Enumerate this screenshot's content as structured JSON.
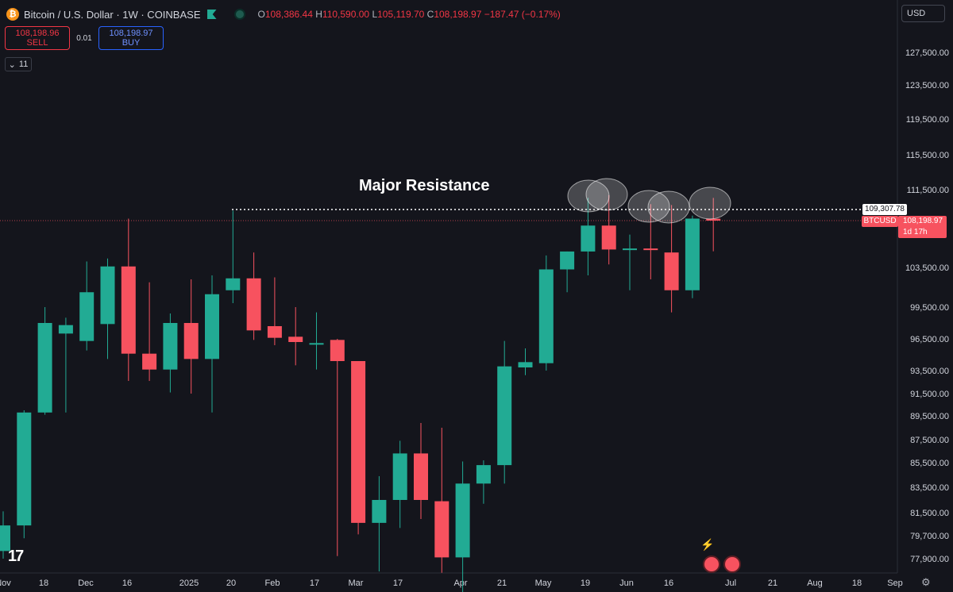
{
  "header": {
    "title": "Bitcoin / U.S. Dollar · 1W · COINBASE",
    "ohlc": {
      "o_label": "O",
      "o": "108,386.44",
      "h_label": "H",
      "h": "110,590.00",
      "l_label": "L",
      "l": "105,119.70",
      "c_label": "C",
      "c": "108,198.97",
      "change": "−187.47 (−0.17%)"
    },
    "btc_symbol": "₿"
  },
  "trade": {
    "sell_price": "108,198.96",
    "sell_label": "SELL",
    "spread": "0.01",
    "buy_price": "108,198.97",
    "buy_label": "BUY"
  },
  "indicators_toggle": {
    "icon": "chevron-down-icon",
    "count": "11"
  },
  "currency": "USD",
  "annotation": "Major Resistance",
  "resistance_label": "109,307.78",
  "current_price": {
    "symbol": "BTCUSD",
    "price": "108,198.97",
    "countdown": "1d 17h"
  },
  "colors": {
    "up": "#22ab94",
    "down": "#f7525f",
    "bg": "#14151c",
    "text": "#d1d4dc"
  },
  "logo": "17",
  "chart_data": {
    "type": "candlestick",
    "resistance": 109307.78,
    "y_ticks": [
      "127,500.00",
      "123,500.00",
      "119,500.00",
      "115,500.00",
      "111,500.00",
      "103,500.00",
      "99,500.00",
      "96,500.00",
      "93,500.00",
      "91,500.00",
      "89,500.00",
      "87,500.00",
      "85,500.00",
      "83,500.00",
      "81,500.00",
      "79,700.00",
      "77,900.00"
    ],
    "x_ticks": [
      "Nov",
      "18",
      "Dec",
      "16",
      "2025",
      "20",
      "Feb",
      "17",
      "Mar",
      "17",
      "Apr",
      "21",
      "May",
      "19",
      "Jun",
      "16",
      "Jul",
      "21",
      "Aug",
      "18",
      "Sep"
    ],
    "candles": [
      {
        "o": 78500,
        "h": 81600,
        "l": 77900,
        "c": 80500
      },
      {
        "o": 80500,
        "h": 90000,
        "l": 79500,
        "c": 89800
      },
      {
        "o": 89800,
        "h": 99500,
        "l": 89600,
        "c": 98000
      },
      {
        "o": 97000,
        "h": 98500,
        "l": 89800,
        "c": 97800
      },
      {
        "o": 96300,
        "h": 104100,
        "l": 95400,
        "c": 101000
      },
      {
        "o": 97900,
        "h": 104400,
        "l": 94600,
        "c": 103600
      },
      {
        "o": 103600,
        "h": 108400,
        "l": 92600,
        "c": 95100
      },
      {
        "o": 95100,
        "h": 102000,
        "l": 92600,
        "c": 93600
      },
      {
        "o": 93600,
        "h": 98900,
        "l": 91600,
        "c": 98000
      },
      {
        "o": 98000,
        "h": 102300,
        "l": 91500,
        "c": 94600
      },
      {
        "o": 94600,
        "h": 102700,
        "l": 89800,
        "c": 100800
      },
      {
        "o": 101200,
        "h": 109200,
        "l": 99900,
        "c": 102400
      },
      {
        "o": 102400,
        "h": 105000,
        "l": 96400,
        "c": 97300
      },
      {
        "o": 97700,
        "h": 102500,
        "l": 95900,
        "c": 96600
      },
      {
        "o": 96700,
        "h": 99500,
        "l": 94000,
        "c": 96200
      },
      {
        "o": 96100,
        "h": 99000,
        "l": 93600,
        "c": 96100
      },
      {
        "o": 96400,
        "h": 96500,
        "l": 78100,
        "c": 94400
      },
      {
        "o": 94400,
        "h": 94400,
        "l": 79800,
        "c": 80700
      },
      {
        "o": 80700,
        "h": 84400,
        "l": 76900,
        "c": 82500
      },
      {
        "o": 82500,
        "h": 87400,
        "l": 80300,
        "c": 86300
      },
      {
        "o": 86300,
        "h": 88900,
        "l": 81000,
        "c": 82500
      },
      {
        "o": 82400,
        "h": 88500,
        "l": 76800,
        "c": 78000
      },
      {
        "o": 78000,
        "h": 85600,
        "l": 74500,
        "c": 83800
      },
      {
        "o": 83800,
        "h": 85700,
        "l": 82200,
        "c": 85300
      },
      {
        "o": 85300,
        "h": 96300,
        "l": 83800,
        "c": 93900
      },
      {
        "o": 93800,
        "h": 95600,
        "l": 93100,
        "c": 94300
      },
      {
        "o": 94200,
        "h": 104700,
        "l": 93500,
        "c": 103300
      },
      {
        "o": 103300,
        "h": 105100,
        "l": 101000,
        "c": 105100
      },
      {
        "o": 105100,
        "h": 110600,
        "l": 102700,
        "c": 107700
      },
      {
        "o": 107700,
        "h": 110900,
        "l": 103800,
        "c": 105300
      },
      {
        "o": 105300,
        "h": 106800,
        "l": 101200,
        "c": 105400
      },
      {
        "o": 105400,
        "h": 109900,
        "l": 102300,
        "c": 105300
      },
      {
        "o": 105000,
        "h": 109800,
        "l": 99000,
        "c": 101200
      },
      {
        "o": 101200,
        "h": 108700,
        "l": 100400,
        "c": 108400
      },
      {
        "o": 108386.44,
        "h": 110590,
        "l": 105119.7,
        "c": 108198.97
      }
    ]
  }
}
